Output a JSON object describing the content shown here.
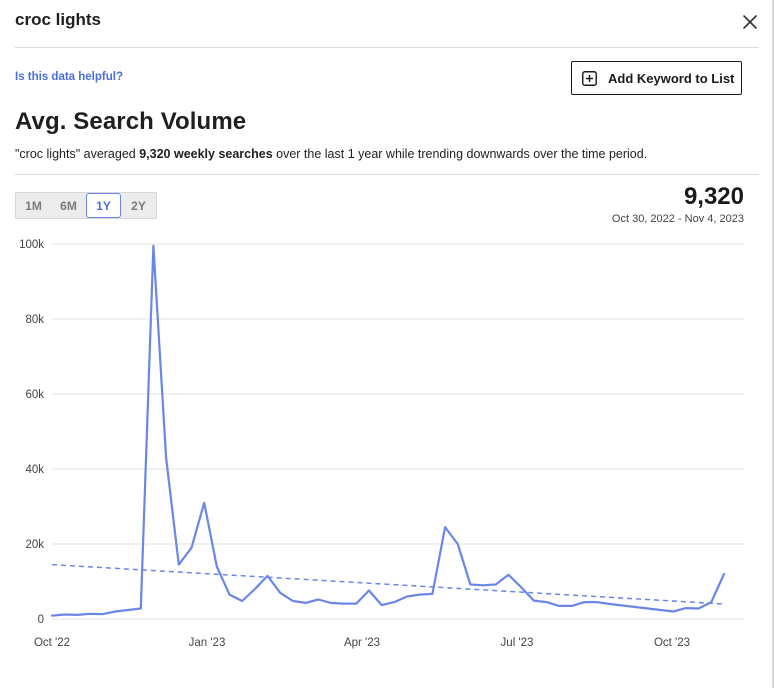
{
  "header": {
    "title": "croc lights"
  },
  "helpful_link": "Is this data helpful?",
  "add_keyword_button": "Add Keyword to List",
  "section": {
    "title": "Avg. Search Volume",
    "summary_prefix": "\"croc lights\" averaged ",
    "summary_bold": "9,320 weekly searches",
    "summary_suffix": " over the last 1 year while trending downwards over the time period."
  },
  "range_options": [
    "1M",
    "6M",
    "1Y",
    "2Y"
  ],
  "range_selected": "1Y",
  "stat": {
    "value": "9,320",
    "date_range": "Oct 30, 2022 - Nov 4, 2023"
  },
  "colors": {
    "line": "#6b86e6",
    "link": "#4a6ee0",
    "grid": "#e2e2e2"
  },
  "chart_data": {
    "type": "line",
    "y_ticks": [
      "0",
      "20k",
      "40k",
      "60k",
      "80k",
      "100k"
    ],
    "ylim": [
      0,
      100000
    ],
    "x_tick_labels": [
      "Oct '22",
      "Jan '23",
      "Apr '23",
      "Jul '23",
      "Oct '23"
    ],
    "grid": "horizontal",
    "series": [
      {
        "values": [
          900,
          1200,
          1100,
          1400,
          1300,
          2000,
          2400,
          2800,
          99500,
          43000,
          14500,
          19000,
          31000,
          14000,
          6500,
          4800,
          8000,
          11500,
          7000,
          4800,
          4300,
          5200,
          4300,
          4100,
          4100,
          7600,
          3700,
          4500,
          6000,
          6500,
          6700,
          24500,
          20000,
          9200,
          9000,
          9200,
          11800,
          8500,
          4900,
          4500,
          3500,
          3500,
          4500,
          4500,
          4000,
          3600,
          3200,
          2800,
          2400,
          2000,
          2900,
          2800,
          4500,
          12000
        ]
      }
    ],
    "trend": {
      "style": "dashed",
      "start": 14500,
      "end": 4000
    }
  }
}
